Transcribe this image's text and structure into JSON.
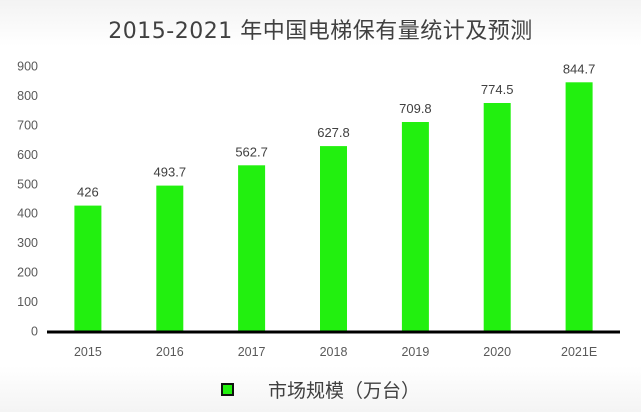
{
  "chart_data": {
    "type": "bar",
    "title": "2015-2021 年中国电梯保有量统计及预测",
    "categories": [
      "2015",
      "2016",
      "2017",
      "2018",
      "2019",
      "2020",
      "2021E"
    ],
    "series": [
      {
        "name": "市场规模（万台）",
        "values": [
          426,
          493.7,
          562.7,
          627.8,
          709.8,
          774.5,
          844.7
        ],
        "labels": [
          "426",
          "493.7",
          "562.7",
          "627.8",
          "709.8",
          "774.5",
          "844.7"
        ]
      }
    ],
    "y_ticks": [
      "0",
      "100",
      "200",
      "300",
      "400",
      "500",
      "600",
      "700",
      "800",
      "900"
    ],
    "ylim": [
      0,
      900
    ],
    "grid": false,
    "legend_position": "bottom",
    "colors": {
      "bar": "#22f00f",
      "axis": "#000000"
    }
  }
}
